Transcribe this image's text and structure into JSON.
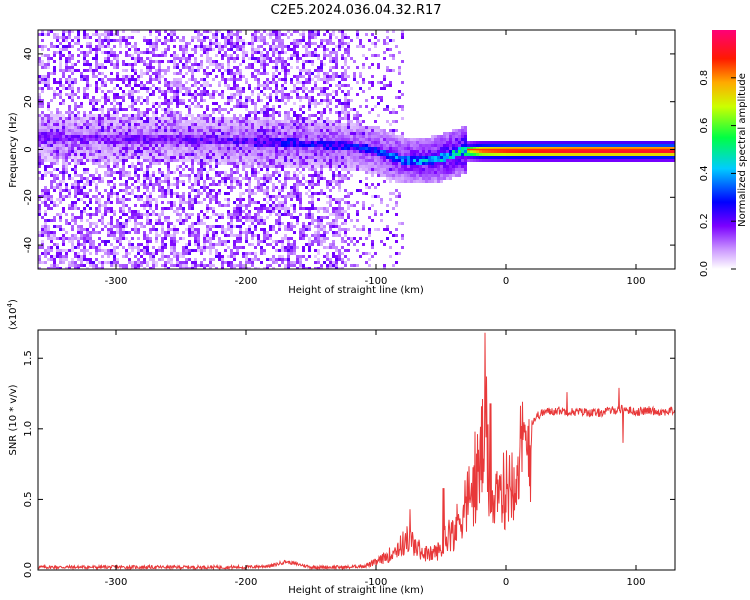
{
  "title": "C2E5.2024.036.04.32.R17",
  "chart_data": [
    {
      "type": "heatmap",
      "name": "spectrogram",
      "xlabel": "Height of straight line (km)",
      "ylabel": "Frequency (Hz)",
      "xlim": [
        -360,
        130
      ],
      "ylim": [
        -50,
        50
      ],
      "xticks": [
        -300,
        -200,
        -100,
        0,
        100
      ],
      "xtick_labels": [
        "-300",
        "-200",
        "-100",
        "0",
        "100"
      ],
      "yticks": [
        -40,
        -20,
        0,
        20,
        40
      ],
      "ytick_labels": [
        "-40",
        "-20",
        "0",
        "20",
        "40"
      ],
      "description_signal_track": {
        "x": [
          -360,
          -300,
          -250,
          -200,
          -150,
          -120,
          -100,
          -80,
          -60,
          -45,
          -35,
          -20,
          0,
          50,
          100,
          130
        ],
        "center_freq_hz": [
          6,
          5,
          5,
          4,
          3,
          2,
          0,
          -4,
          -4,
          -2,
          0,
          0,
          0,
          0,
          0,
          0
        ],
        "amplitude": [
          0.2,
          0.2,
          0.2,
          0.25,
          0.3,
          0.3,
          0.35,
          0.4,
          0.45,
          0.5,
          0.55,
          0.85,
          0.9,
          0.95,
          0.95,
          0.95
        ]
      },
      "colorbar": {
        "label": "Normalized spectral amplitude",
        "range": [
          0,
          1
        ],
        "ticks": [
          0.0,
          0.2,
          0.4,
          0.6,
          0.8
        ],
        "tick_labels": [
          "0.0",
          "0.2",
          "0.4",
          "0.6",
          "0.8"
        ],
        "colors": [
          "#ffffff",
          "#8b00ff",
          "#0000ff",
          "#00ffff",
          "#00ff00",
          "#ffff00",
          "#ff8000",
          "#ff0000",
          "#ff0080"
        ]
      }
    },
    {
      "type": "line",
      "name": "snr",
      "xlabel": "Height of straight line (km)",
      "ylabel": "SNR (10 * v/v)",
      "scale_label": "(x10",
      "scale_exp": "4",
      "scale_close": ")",
      "xlim": [
        -360,
        130
      ],
      "ylim": [
        0,
        1.7
      ],
      "xticks": [
        -300,
        -200,
        -100,
        0,
        100
      ],
      "xtick_labels": [
        "-300",
        "-200",
        "-100",
        "0",
        "100"
      ],
      "yticks": [
        0.0,
        0.5,
        1.0,
        1.5
      ],
      "ytick_labels": [
        "0.0",
        "0.5",
        "1.0",
        "1.5"
      ],
      "color": "#e8393a",
      "series": [
        {
          "name": "SNR",
          "x": [
            -360,
            -300,
            -250,
            -200,
            -180,
            -170,
            -150,
            -120,
            -110,
            -100,
            -90,
            -80,
            -75,
            -70,
            -60,
            -50,
            -45,
            -40,
            -35,
            -30,
            -25,
            -20,
            -16,
            -12,
            -8,
            -4,
            0,
            5,
            10,
            15,
            20,
            25,
            30,
            40,
            50,
            60,
            70,
            80,
            90,
            100,
            110,
            120,
            130
          ],
          "y": [
            0.02,
            0.02,
            0.02,
            0.02,
            0.03,
            0.06,
            0.02,
            0.02,
            0.03,
            0.06,
            0.12,
            0.2,
            0.25,
            0.18,
            0.12,
            0.16,
            0.3,
            0.28,
            0.45,
            0.55,
            0.6,
            0.85,
            1.1,
            0.55,
            0.5,
            0.6,
            0.65,
            0.75,
            0.88,
            0.95,
            1.05,
            1.1,
            1.12,
            1.13,
            1.12,
            1.12,
            1.11,
            1.13,
            1.14,
            1.12,
            1.13,
            1.12,
            1.13
          ]
        }
      ],
      "spikes": [
        {
          "x": -74,
          "y": 0.43
        },
        {
          "x": -48,
          "y": 0.58
        },
        {
          "x": -24,
          "y": 0.98
        },
        {
          "x": -16,
          "y": 1.68
        },
        {
          "x": -12,
          "y": 1.18
        },
        {
          "x": 47,
          "y": 1.26
        },
        {
          "x": 87,
          "y": 1.29
        },
        {
          "x": 90,
          "y": 0.9
        }
      ]
    }
  ]
}
